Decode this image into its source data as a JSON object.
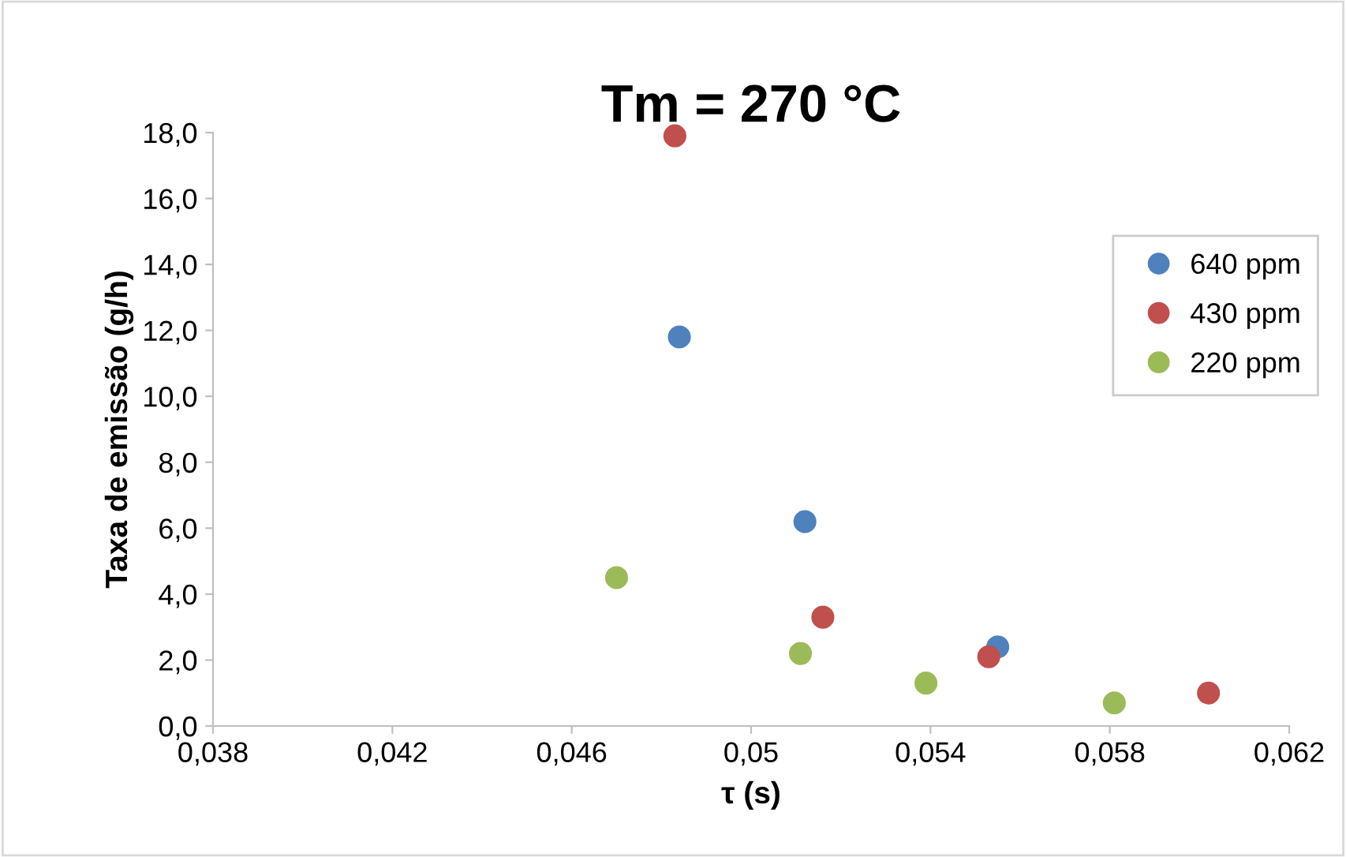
{
  "chart_data": {
    "type": "scatter",
    "title": "Tm = 270 °C",
    "xlabel": "τ (s)",
    "ylabel": "Taxa de emissão (g/h)",
    "series": [
      {
        "name": "640 ppm",
        "color": "#4f81bd",
        "x": [
          0.0484,
          0.0512,
          0.0555
        ],
        "values": [
          11.8,
          6.2,
          2.4
        ]
      },
      {
        "name": "430 ppm",
        "color": "#c0504d",
        "x": [
          0.0483,
          0.0516,
          0.0553,
          0.0602
        ],
        "values": [
          17.9,
          3.3,
          2.1,
          1.0
        ]
      },
      {
        "name": "220 ppm",
        "color": "#9bbb59",
        "x": [
          0.047,
          0.0511,
          0.0539,
          0.0581
        ],
        "values": [
          4.5,
          2.2,
          1.3,
          0.7
        ]
      }
    ],
    "xlim": [
      0.038,
      0.062
    ],
    "xticks": [
      {
        "value": 0.038,
        "label": "0,038"
      },
      {
        "value": 0.042,
        "label": "0,042"
      },
      {
        "value": 0.046,
        "label": "0,046"
      },
      {
        "value": 0.05,
        "label": "0,05"
      },
      {
        "value": 0.054,
        "label": "0,054"
      },
      {
        "value": 0.058,
        "label": "0,058"
      },
      {
        "value": 0.062,
        "label": "0,062"
      }
    ],
    "ylim": [
      0,
      18
    ],
    "yticks": [
      {
        "value": 0,
        "label": "0,0"
      },
      {
        "value": 2,
        "label": "2,0"
      },
      {
        "value": 4,
        "label": "4,0"
      },
      {
        "value": 6,
        "label": "6,0"
      },
      {
        "value": 8,
        "label": "8,0"
      },
      {
        "value": 10,
        "label": "10,0"
      },
      {
        "value": 12,
        "label": "12,0"
      },
      {
        "value": 14,
        "label": "14,0"
      },
      {
        "value": 16,
        "label": "16,0"
      },
      {
        "value": 18,
        "label": "18,0"
      }
    ],
    "grid": false,
    "legend": "top right",
    "marker": "circle"
  }
}
